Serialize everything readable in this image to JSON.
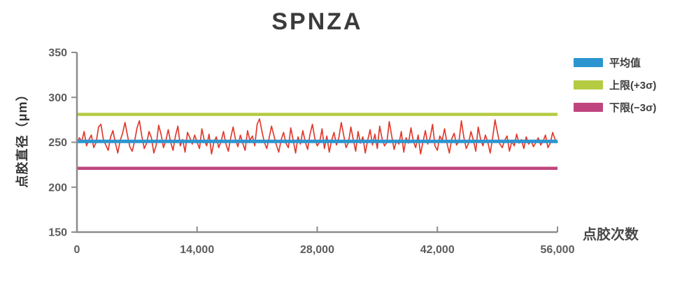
{
  "chart_data": {
    "type": "line",
    "title": "SPNZA",
    "xlabel": "点胶次数",
    "ylabel": "点胶直径（μm）",
    "xlim": [
      0,
      56000
    ],
    "ylim": [
      150,
      350
    ],
    "x_ticks": [
      0,
      14000,
      28000,
      42000,
      56000
    ],
    "x_tick_labels": [
      "0",
      "14,000",
      "28,000",
      "42,000",
      "56,000"
    ],
    "y_ticks": [
      150,
      200,
      250,
      300,
      350
    ],
    "y_tick_labels": [
      "150",
      "200",
      "250",
      "300",
      "350"
    ],
    "grid": false,
    "legend_position": "right",
    "colors": {
      "axis": "#8c8c8c",
      "tick_label": "#5c5c5c",
      "title_text": "#3b3b3b",
      "series_red": "#e13a2d",
      "mean_blue": "#2c95d0",
      "upper_green": "#b5cb41",
      "lower_magenta": "#c0457f"
    },
    "reference_lines": [
      {
        "name": "平均值",
        "value": 251,
        "color": "#2c95d0"
      },
      {
        "name": "上限(+3σ)",
        "value": 281,
        "color": "#b5cb41"
      },
      {
        "name": "下限(−3σ)",
        "value": 221,
        "color": "#c0457f"
      }
    ],
    "series": [
      {
        "name": "点胶直径",
        "color": "#e13a2d",
        "x_start": 0,
        "x_step": 280,
        "values": [
          248,
          255,
          251,
          262,
          246,
          253,
          258,
          244,
          250,
          267,
          270,
          253,
          247,
          241,
          256,
          263,
          249,
          238,
          252,
          260,
          272,
          258,
          245,
          240,
          251,
          266,
          274,
          257,
          243,
          249,
          262,
          255,
          238,
          247,
          269,
          259,
          244,
          252,
          264,
          250,
          241,
          257,
          268,
          246,
          253,
          239,
          261,
          255,
          248,
          258,
          250,
          243,
          265,
          252,
          246,
          259,
          237,
          250,
          256,
          244,
          251,
          262,
          248,
          240,
          255,
          267,
          253,
          245,
          258,
          249,
          241,
          263,
          252,
          257,
          246,
          270,
          276,
          262,
          250,
          243,
          255,
          268,
          257,
          247,
          239,
          253,
          261,
          249,
          244,
          266,
          252,
          238,
          256,
          248,
          263,
          251,
          242,
          259,
          270,
          254,
          246,
          250,
          265,
          243,
          257,
          239,
          252,
          261,
          247,
          255,
          272,
          258,
          244,
          250,
          267,
          253,
          240,
          262,
          249,
          256,
          238,
          252,
          264,
          247,
          259,
          243,
          268,
          254,
          246,
          250,
          273,
          257,
          242,
          252,
          248,
          262,
          239,
          255,
          249,
          266,
          251,
          244,
          258,
          237,
          250,
          263,
          248,
          255,
          270,
          246,
          241,
          257,
          252,
          265,
          249,
          238,
          254,
          260,
          247,
          251,
          274,
          256,
          243,
          249,
          262,
          252,
          240,
          267,
          253,
          246,
          258,
          250,
          238,
          255,
          275,
          261,
          248,
          244,
          252,
          257,
          240,
          251,
          246,
          259,
          249,
          253,
          243,
          256,
          248,
          252,
          245,
          250,
          255,
          247,
          251,
          258,
          244,
          249,
          261,
          253,
          250
        ]
      }
    ]
  }
}
